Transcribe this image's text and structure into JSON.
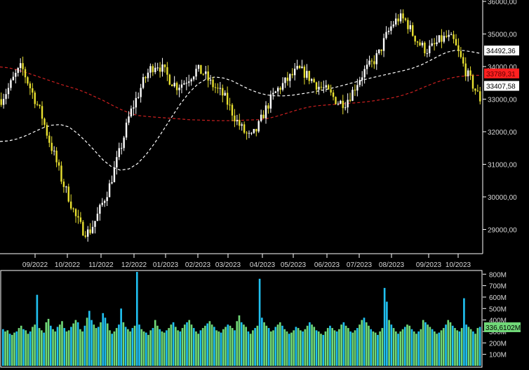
{
  "chart_data": [
    {
      "type": "candlestick",
      "panel": "price",
      "x_tick_labels": [
        "09/2022",
        "10/2022",
        "11/2022",
        "12/2022",
        "01/2023",
        "02/2023",
        "03/2023",
        "04/2023",
        "05/2023",
        "06/2023",
        "07/2023",
        "08/2023",
        "09/2023",
        "10/2023"
      ],
      "y_tick_labels": [
        "29000,00",
        "30000,00",
        "31000,00",
        "32000,00",
        "33000,00",
        "34000,00",
        "35000,00",
        "36000,00"
      ],
      "ylim": [
        28300,
        36000
      ],
      "price_closes": [
        33000,
        33300,
        33700,
        34000,
        33500,
        33000,
        32500,
        31800,
        31200,
        30500,
        30000,
        29400,
        29000,
        28900,
        29300,
        29800,
        30300,
        31000,
        31700,
        32500,
        33000,
        33500,
        33900,
        34100,
        33900,
        33600,
        33400,
        33500,
        33700,
        33900,
        33800,
        33500,
        33300,
        33100,
        32700,
        32300,
        32000,
        31800,
        32100,
        32600,
        33000,
        33300,
        33500,
        33700,
        33900,
        33800,
        33600,
        33400,
        33300,
        33100,
        32900,
        32900,
        33200,
        33600,
        33900,
        34100,
        34400,
        34900,
        35300,
        35500,
        35400,
        35000,
        34700,
        34500,
        34600,
        34800,
        34900,
        34800,
        34300,
        33800,
        33400,
        33000
      ],
      "series": [
        {
          "name": "",
          "color": "#ffffff",
          "style": "dashed",
          "values": [
            31700,
            31720,
            31780,
            31880,
            32000,
            32120,
            32200,
            32220,
            32150,
            31950,
            31700,
            31420,
            31130,
            30920,
            30820,
            30860,
            31020,
            31300,
            31650,
            32050,
            32460,
            32860,
            33200,
            33460,
            33620,
            33680,
            33650,
            33560,
            33430,
            33300,
            33200,
            33130,
            33100,
            33100,
            33120,
            33160,
            33200,
            33250,
            33300,
            33360,
            33430,
            33500,
            33570,
            33640,
            33700,
            33760,
            33820,
            33880,
            33950,
            34050,
            34180,
            34320,
            34440,
            34500,
            34490,
            34450,
            34400
          ]
        },
        {
          "name": "",
          "color": "#cc2020",
          "style": "dashed",
          "values": [
            33990,
            33960,
            33900,
            33820,
            33730,
            33640,
            33550,
            33460,
            33380,
            33300,
            33200,
            33080,
            32960,
            32820,
            32690,
            32580,
            32500,
            32470,
            32450,
            32430,
            32410,
            32390,
            32370,
            32360,
            32350,
            32340,
            32340,
            32340,
            32350,
            32360,
            32370,
            32400,
            32460,
            32540,
            32620,
            32700,
            32760,
            32800,
            32820,
            32840,
            32860,
            32880,
            32900,
            32930,
            32970,
            33010,
            33060,
            33130,
            33220,
            33330,
            33440,
            33540,
            33620,
            33680,
            33710,
            33730,
            33730
          ]
        }
      ],
      "last_value_tags": [
        {
          "text": "34492,36",
          "color": "#ffffff"
        },
        {
          "text": "33789,31",
          "color": "#ff2020"
        },
        {
          "text": "33407,58",
          "color": "#ffffff"
        }
      ]
    },
    {
      "type": "bar",
      "panel": "volume",
      "y_tick_labels": [
        "100M",
        "200M",
        "300M",
        "400M",
        "500M",
        "600M",
        "700M",
        "800M"
      ],
      "ylim": [
        0,
        820
      ],
      "colors": {
        "up": "#20c0f0",
        "down": "#70d878"
      },
      "last_value_tag": {
        "text": "336,6102M",
        "color": "#70d878"
      },
      "values": [
        320,
        300,
        310,
        280,
        270,
        290,
        300,
        330,
        350,
        320,
        310,
        280,
        300,
        340,
        360,
        620,
        330,
        310,
        290,
        380,
        410,
        350,
        320,
        300,
        340,
        360,
        390,
        330,
        300,
        310,
        340,
        370,
        400,
        380,
        320,
        300,
        350,
        420,
        480,
        400,
        360,
        330,
        340,
        380,
        460,
        420,
        370,
        310,
        280,
        300,
        330,
        360,
        500,
        380,
        340,
        320,
        300,
        330,
        350,
        820,
        360,
        320,
        300,
        290,
        270,
        310,
        330,
        400,
        350,
        320,
        300,
        290,
        310,
        330,
        360,
        380,
        340,
        310,
        300,
        330,
        360,
        380,
        400,
        360,
        330,
        300,
        280,
        310,
        330,
        350,
        370,
        390,
        360,
        340,
        310,
        300,
        290,
        320,
        340,
        360,
        350,
        330,
        310,
        390,
        440,
        380,
        360,
        340,
        300,
        280,
        310,
        330,
        350,
        760,
        420,
        380,
        350,
        330,
        300,
        310,
        340,
        360,
        380,
        350,
        320,
        300,
        280,
        290,
        310,
        340,
        330,
        310,
        300,
        320,
        350,
        380,
        360,
        340,
        310,
        300,
        280,
        270,
        300,
        330,
        350,
        330,
        310,
        300,
        320,
        360,
        380,
        350,
        330,
        300,
        290,
        310,
        330,
        360,
        400,
        420,
        380,
        350,
        320,
        300,
        290,
        270,
        300,
        330,
        680,
        560,
        400,
        360,
        330,
        300,
        280,
        300,
        320,
        340,
        360,
        350,
        320,
        300,
        280,
        300,
        320,
        400,
        380,
        360,
        340,
        320,
        300,
        280,
        290,
        310,
        330,
        360,
        400,
        380,
        350,
        330,
        310,
        300,
        330,
        590,
        360,
        340,
        320,
        300,
        280,
        330,
        340
      ]
    }
  ]
}
